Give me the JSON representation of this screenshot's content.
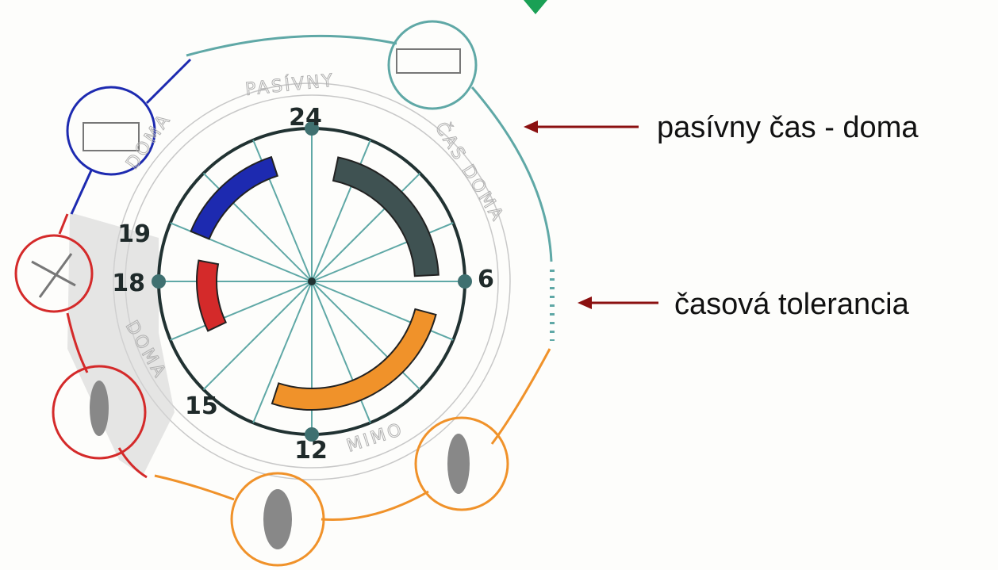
{
  "clock": {
    "hours": {
      "top": "24",
      "right": "6",
      "bottom": "12",
      "left": "18",
      "evening": "19",
      "afternoon": "15"
    }
  },
  "ring_labels": {
    "passive": "PASÍVNY",
    "time_home": "ČAS DOMA",
    "home_top": "DOMA",
    "home_bottom": "DOMA",
    "away": "MIMO"
  },
  "annotations": {
    "passive_time": "pasívny čas - doma",
    "tolerance": "časová tolerancia"
  }
}
